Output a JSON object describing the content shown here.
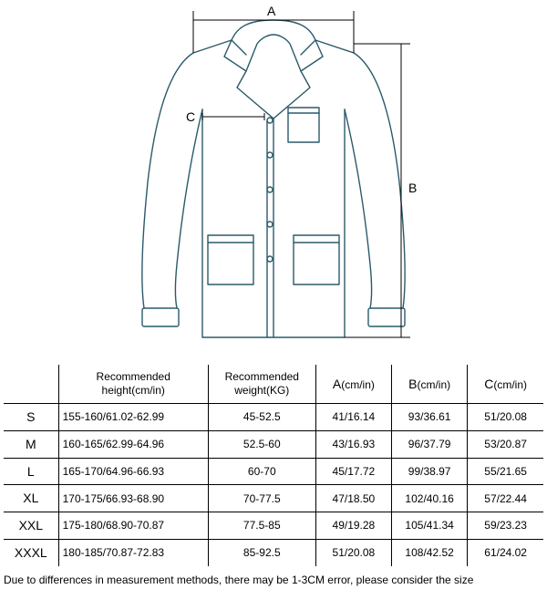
{
  "diagram": {
    "stroke": "#2a5a6a",
    "stroke_width": 1.4,
    "label_A": "A",
    "label_B": "B",
    "label_C": "C",
    "dim_line_color": "#000000"
  },
  "table": {
    "headers": {
      "size": "",
      "height_line1": "Recommended",
      "height_line2": "height(cm/in)",
      "weight_line1": "Recommended",
      "weight_line2": "weight(KG)",
      "a": "A",
      "a_unit": "(cm/in)",
      "b": "B",
      "b_unit": "(cm/in)",
      "c": "C",
      "c_unit": "(cm/in)"
    },
    "rows": [
      {
        "size": "S",
        "height": "155-160/61.02-62.99",
        "weight": "45-52.5",
        "a": "41/16.14",
        "b": "93/36.61",
        "c": "51/20.08"
      },
      {
        "size": "M",
        "height": "160-165/62.99-64.96",
        "weight": "52.5-60",
        "a": "43/16.93",
        "b": "96/37.79",
        "c": "53/20.87"
      },
      {
        "size": "L",
        "height": "165-170/64.96-66.93",
        "weight": "60-70",
        "a": "45/17.72",
        "b": "99/38.97",
        "c": "55/21.65"
      },
      {
        "size": "XL",
        "height": "170-175/66.93-68.90",
        "weight": "70-77.5",
        "a": "47/18.50",
        "b": "102/40.16",
        "c": "57/22.44"
      },
      {
        "size": "XXL",
        "height": "175-180/68.90-70.87",
        "weight": "77.5-85",
        "a": "49/19.28",
        "b": "105/41.34",
        "c": "59/23.23"
      },
      {
        "size": "XXXL",
        "height": "180-185/70.87-72.83",
        "weight": "85-92.5",
        "a": "51/20.08",
        "b": "108/42.52",
        "c": "61/24.02"
      }
    ]
  },
  "footer": "Due to differences in measurement methods, there may be 1-3CM error, please consider the size"
}
